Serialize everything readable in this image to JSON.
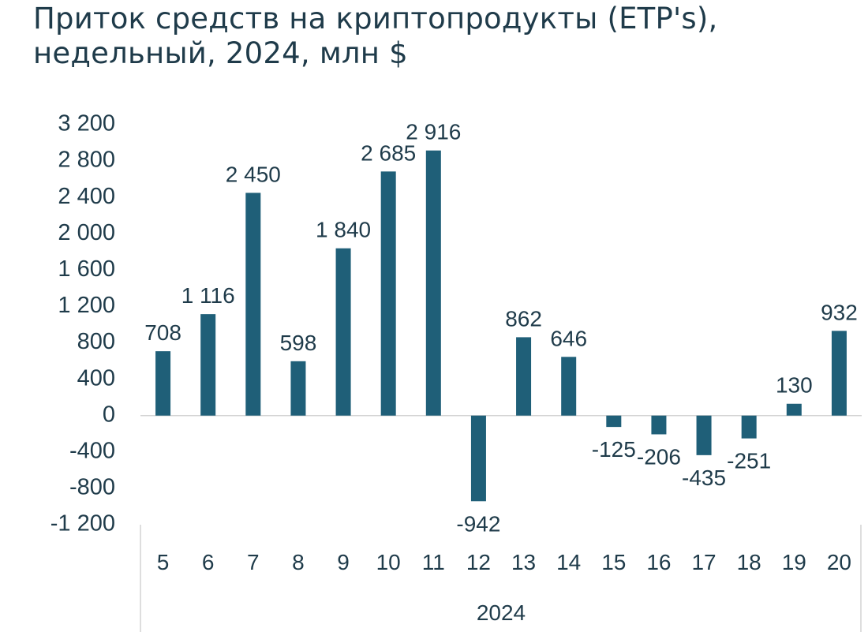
{
  "chart_data": {
    "type": "bar",
    "title_lines": [
      "Приток средств на криптопродукты (ETP's),",
      "недельный, 2024, млн $"
    ],
    "categories": [
      "5",
      "6",
      "7",
      "8",
      "9",
      "10",
      "11",
      "12",
      "13",
      "14",
      "15",
      "16",
      "17",
      "18",
      "19",
      "20"
    ],
    "values": [
      708,
      1116,
      2450,
      598,
      1840,
      2685,
      2916,
      -942,
      862,
      646,
      -125,
      -206,
      -435,
      -251,
      130,
      932
    ],
    "value_labels": [
      "708",
      "1 116",
      "2 450",
      "598",
      "1 840",
      "2 685",
      "2 916",
      "-942",
      "862",
      "646",
      "-125",
      "-206",
      "-435",
      "-251",
      "130",
      "932"
    ],
    "group_label": "2024",
    "yticks": [
      3200,
      2800,
      2400,
      2000,
      1600,
      1200,
      800,
      400,
      0,
      -400,
      -800,
      -1200
    ],
    "ytick_labels": [
      "3 200",
      "2 800",
      "2 400",
      "2 000",
      "1 600",
      "1 200",
      "800",
      "400",
      "0",
      "-400",
      "-800",
      "-1 200"
    ],
    "ylim": [
      -1200,
      3200
    ],
    "grid": false,
    "colors": {
      "bar": "#1f5f78",
      "text": "#1f3b4a",
      "axis": "#d4d4d4"
    }
  }
}
